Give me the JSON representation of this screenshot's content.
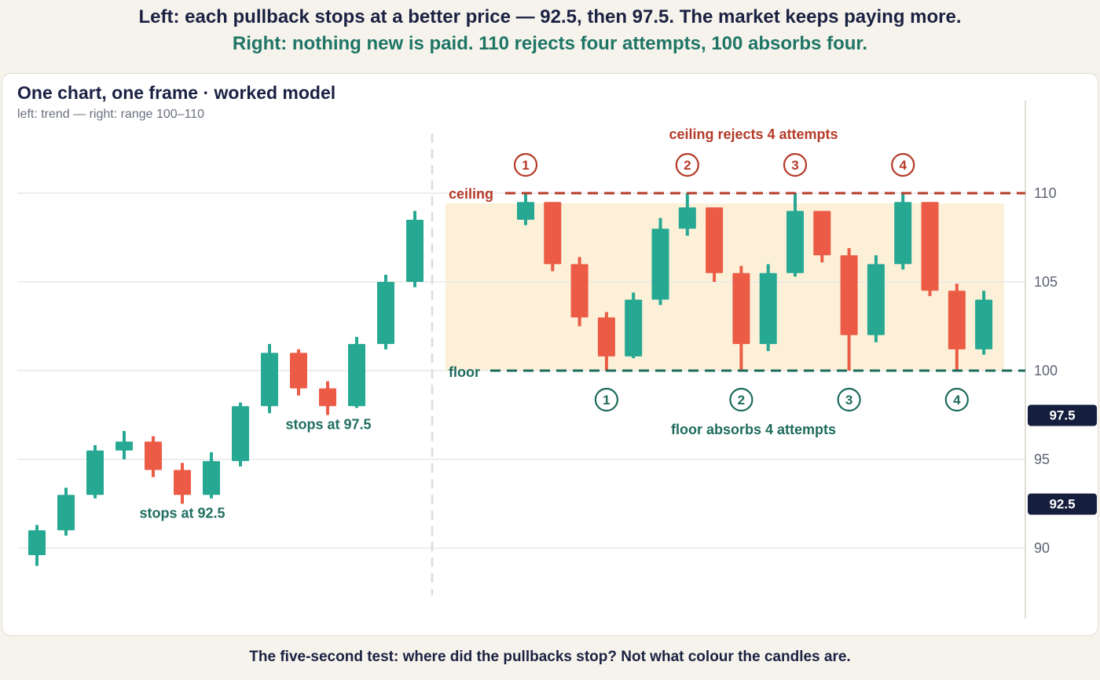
{
  "headline": {
    "left": "Left: each pullback stops at a better price — 92.5, then 97.5. The market keeps paying more.",
    "right": "Right: nothing new is paid. 110 rejects four attempts, 100 absorbs four."
  },
  "panel": {
    "title": "One chart, one frame · worked model",
    "subtitle": "left: trend — right: range 100–110"
  },
  "footer": "The five-second test: where did the pullbacks stop? Not what colour the candles are.",
  "colors": {
    "up": "#26a892",
    "down": "#eb5b45",
    "ceiling": "#b53a28",
    "floor": "#1e6b5c",
    "range_fill": "#fcf0d8",
    "price_tag": "#151e3d",
    "grid": "#e8e8e8",
    "divider": "#dcdcdc"
  },
  "chart_data": {
    "type": "candlestick",
    "y_axis": {
      "ticks": [
        90,
        95,
        100,
        105,
        110
      ],
      "ylim": [
        85.5,
        115.5
      ],
      "side": "right"
    },
    "price_tags": [
      "97.5",
      "92.5"
    ],
    "trend": {
      "candles": [
        {
          "o": 89.6,
          "h": 91.3,
          "l": 89.0,
          "c": 91.0
        },
        {
          "o": 91.0,
          "h": 93.4,
          "l": 90.7,
          "c": 93.0
        },
        {
          "o": 93.0,
          "h": 95.8,
          "l": 92.8,
          "c": 95.5
        },
        {
          "o": 95.5,
          "h": 96.6,
          "l": 95.0,
          "c": 96.0
        },
        {
          "o": 96.0,
          "h": 96.3,
          "l": 94.0,
          "c": 94.4
        },
        {
          "o": 94.4,
          "h": 94.8,
          "l": 92.5,
          "c": 93.0
        },
        {
          "o": 93.0,
          "h": 95.4,
          "l": 92.8,
          "c": 94.9
        },
        {
          "o": 94.9,
          "h": 98.2,
          "l": 94.6,
          "c": 98.0
        },
        {
          "o": 98.0,
          "h": 101.5,
          "l": 97.6,
          "c": 101.0
        },
        {
          "o": 101.0,
          "h": 101.2,
          "l": 98.6,
          "c": 99.0
        },
        {
          "o": 99.0,
          "h": 99.4,
          "l": 97.5,
          "c": 98.0
        },
        {
          "o": 98.0,
          "h": 101.9,
          "l": 97.9,
          "c": 101.5
        },
        {
          "o": 101.5,
          "h": 105.4,
          "l": 101.2,
          "c": 105.0
        },
        {
          "o": 105.0,
          "h": 109.0,
          "l": 104.7,
          "c": 108.5
        }
      ],
      "annotations": [
        {
          "text": "stops at 92.5",
          "value": 92.5
        },
        {
          "text": "stops at 97.5",
          "value": 97.5
        }
      ]
    },
    "range": {
      "ceiling": 110,
      "floor": 100,
      "ceiling_label": "ceiling",
      "floor_label": "floor",
      "ceiling_caption": "ceiling rejects 4 attempts",
      "floor_caption": "floor absorbs 4 attempts",
      "candles": [
        {
          "o": 108.5,
          "h": 110.0,
          "l": 108.2,
          "c": 109.5
        },
        {
          "o": 109.5,
          "h": 109.5,
          "l": 105.6,
          "c": 106.0
        },
        {
          "o": 106.0,
          "h": 106.4,
          "l": 102.5,
          "c": 103.0
        },
        {
          "o": 103.0,
          "h": 103.3,
          "l": 100.0,
          "c": 100.8
        },
        {
          "o": 100.8,
          "h": 104.4,
          "l": 100.7,
          "c": 104.0
        },
        {
          "o": 104.0,
          "h": 108.6,
          "l": 103.7,
          "c": 108.0
        },
        {
          "o": 108.0,
          "h": 110.0,
          "l": 107.6,
          "c": 109.2
        },
        {
          "o": 109.2,
          "h": 109.2,
          "l": 105.0,
          "c": 105.5
        },
        {
          "o": 105.5,
          "h": 105.9,
          "l": 100.0,
          "c": 101.5
        },
        {
          "o": 101.5,
          "h": 106.0,
          "l": 101.1,
          "c": 105.5
        },
        {
          "o": 105.5,
          "h": 110.0,
          "l": 105.3,
          "c": 109.0
        },
        {
          "o": 109.0,
          "h": 109.0,
          "l": 106.1,
          "c": 106.5
        },
        {
          "o": 106.5,
          "h": 106.9,
          "l": 100.0,
          "c": 102.0
        },
        {
          "o": 102.0,
          "h": 106.5,
          "l": 101.6,
          "c": 106.0
        },
        {
          "o": 106.0,
          "h": 110.0,
          "l": 105.7,
          "c": 109.5
        },
        {
          "o": 109.5,
          "h": 109.5,
          "l": 104.2,
          "c": 104.5
        },
        {
          "o": 104.5,
          "h": 104.9,
          "l": 100.0,
          "c": 101.2
        },
        {
          "o": 101.2,
          "h": 104.5,
          "l": 100.9,
          "c": 104.0
        }
      ],
      "ceiling_touches": [
        {
          "label": "1",
          "candle": 0
        },
        {
          "label": "2",
          "candle": 6
        },
        {
          "label": "3",
          "candle": 10
        },
        {
          "label": "4",
          "candle": 14
        }
      ],
      "floor_touches": [
        {
          "label": "1",
          "candle": 3
        },
        {
          "label": "2",
          "candle": 8
        },
        {
          "label": "3",
          "candle": 12
        },
        {
          "label": "4",
          "candle": 16
        }
      ]
    }
  }
}
